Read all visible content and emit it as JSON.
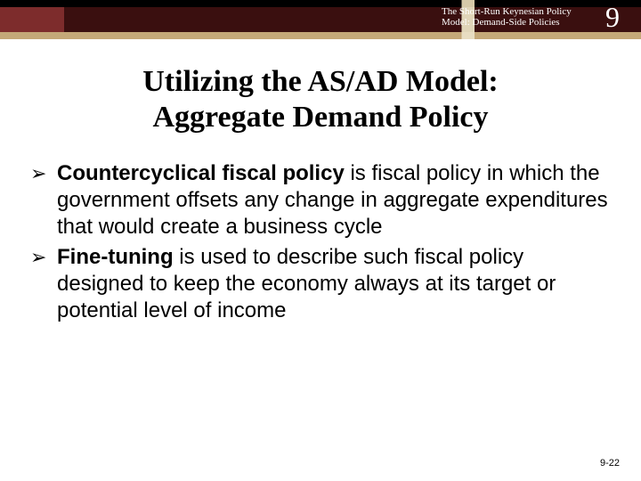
{
  "header": {
    "subtitle_line1": "The Short-Run Keynesian Policy",
    "subtitle_line2": "Model: Demand-Side Policies",
    "chapter_number": "9"
  },
  "title": {
    "line1": "Utilizing the AS/AD Model:",
    "line2": "Aggregate Demand Policy"
  },
  "bullets": [
    {
      "bold": "Countercyclical fiscal policy",
      "rest": " is fiscal policy in which the government offsets any change in aggregate expenditures that would create a business cycle"
    },
    {
      "bold": "Fine-tuning",
      "rest": " is used to describe such fiscal policy designed to keep the economy always at its target or potential level of income"
    }
  ],
  "page_number": "9-22",
  "colors": {
    "header_dark": "#3a0f0f",
    "header_accent": "#7d2c2c",
    "header_tan": "#c4a878",
    "background": "#ffffff",
    "text": "#000000"
  }
}
